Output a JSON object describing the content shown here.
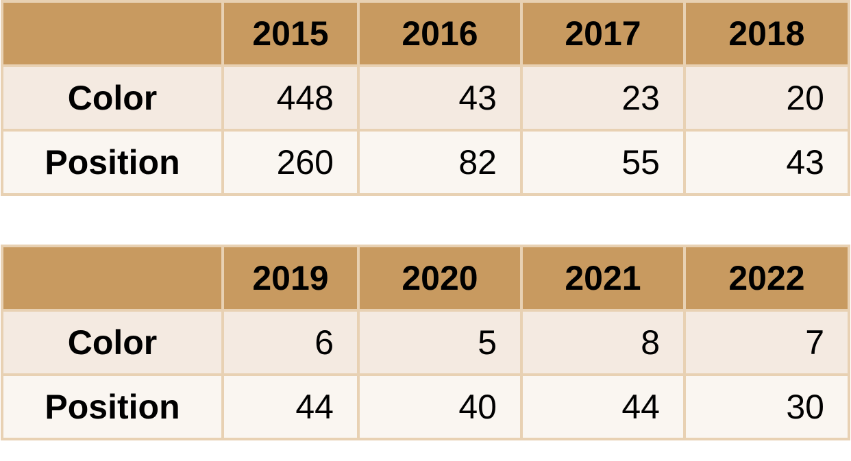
{
  "tables": [
    {
      "columns": [
        "2015",
        "2016",
        "2017",
        "2018"
      ],
      "rows": [
        {
          "label": "Color",
          "values": [
            448,
            43,
            23,
            20
          ]
        },
        {
          "label": "Position",
          "values": [
            260,
            82,
            55,
            43
          ]
        }
      ]
    },
    {
      "columns": [
        "2019",
        "2020",
        "2021",
        "2022"
      ],
      "rows": [
        {
          "label": "Color",
          "values": [
            6,
            5,
            8,
            7
          ]
        },
        {
          "label": "Position",
          "values": [
            44,
            40,
            44,
            30
          ]
        }
      ]
    }
  ]
}
